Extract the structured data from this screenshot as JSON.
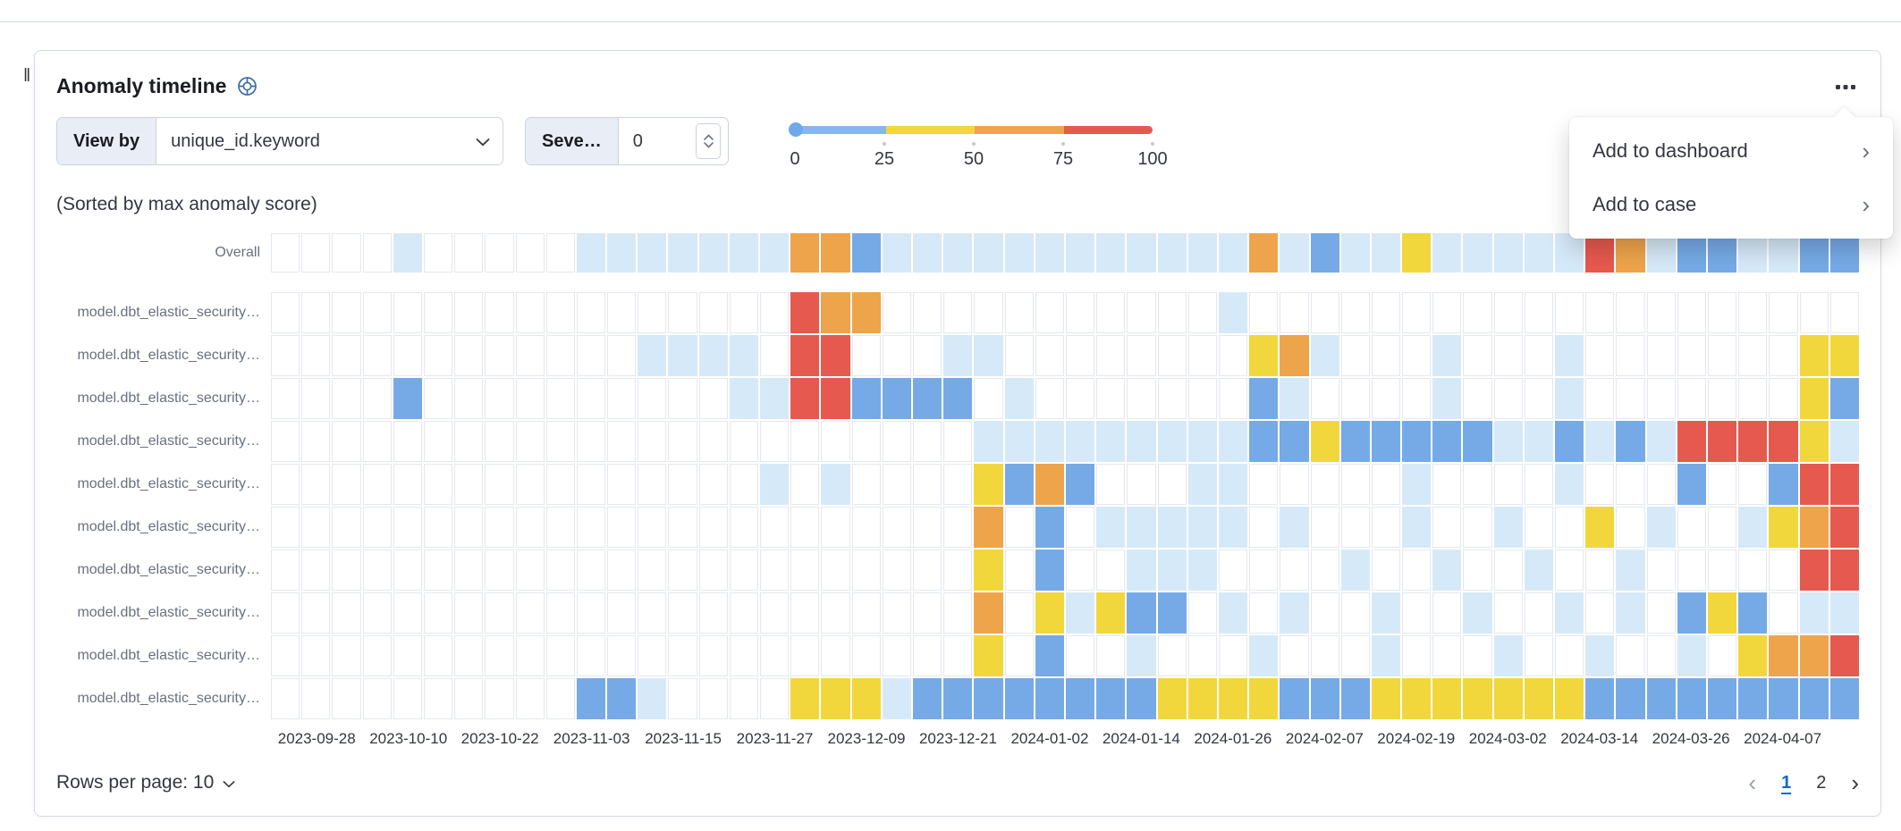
{
  "icons": {
    "drag_handle": "‖",
    "prev_page": "‹",
    "next_page": "›",
    "menu_chevron": "›"
  },
  "panel": {
    "title": "Anomaly timeline",
    "sorted_note": "(Sorted by max anomaly score)"
  },
  "controls": {
    "view_by_label": "View by",
    "view_by_value": "unique_id.keyword",
    "severity_label": "Seve…",
    "severity_value": "0"
  },
  "legend": {
    "labels": [
      "0",
      "25",
      "50",
      "75",
      "100"
    ],
    "segment_colors": [
      "#86b7ee",
      "#f2d73c",
      "#eea44b",
      "#e6594f"
    ],
    "dot_color": "#6ea9e8"
  },
  "context_menu": {
    "items": [
      "Add to dashboard",
      "Add to case"
    ]
  },
  "swimlane": {
    "overall_label": "Overall",
    "row_labels": [
      "model.dbt_elastic_security…",
      "model.dbt_elastic_security…",
      "model.dbt_elastic_security…",
      "model.dbt_elastic_security…",
      "model.dbt_elastic_security…",
      "model.dbt_elastic_security…",
      "model.dbt_elastic_security…",
      "model.dbt_elastic_security…",
      "model.dbt_elastic_security…",
      "model.dbt_elastic_security…"
    ],
    "palette": {
      ".": "#ffffff",
      "l": "#d6e9f8",
      "b": "#76aae6",
      "y": "#f2d73c",
      "o": "#eea44b",
      "r": "#e6594f"
    },
    "overall_cells": "....l.....llllllloobllllllllllllolbllylllllrolbbllbb",
    "rows_cells": [
      ".................roo...........l....................",
      "............llll.rr...ll........yol...l...l.......yy",
      "....b..........llrrbbbb.l.......bl....l...l.......yb",
      ".......................lllllllllbbybbbbbllblblrrrryl",
      "................l.l....ybob...ll.....l....l...b..brr",
      ".......................o.b.lllll.l...l..l..y.l..lyor",
      ".......................y.b..lll....l..l..l..l.....rr",
      ".......................o.ylybb.l.l..l..l..l.l.byb.ll",
      ".......................y.b..l...l...l...l..l..l.yoor",
      "..........bbl....yyylbbbbbbbbyyyybbbyyyyyyybbbbbbbbb"
    ],
    "dates": [
      "2023-09-28",
      "2023-10-10",
      "2023-10-22",
      "2023-11-03",
      "2023-11-15",
      "2023-11-27",
      "2023-12-09",
      "2023-12-21",
      "2024-01-02",
      "2024-01-14",
      "2024-01-26",
      "2024-02-07",
      "2024-02-19",
      "2024-03-02",
      "2024-03-14",
      "2024-03-26",
      "2024-04-07"
    ]
  },
  "footer": {
    "rows_per_page": "Rows per page: 10",
    "pages": [
      "1",
      "2"
    ],
    "active_page": "1"
  }
}
